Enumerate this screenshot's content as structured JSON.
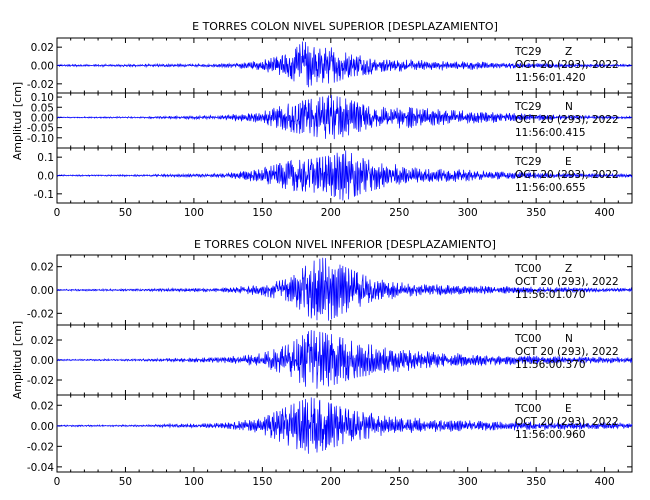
{
  "colors": {
    "trace": "#0000ff",
    "axis": "#000000",
    "background": "#ffffff"
  },
  "chart_data": [
    {
      "type": "line",
      "title": "E TORRES COLON NIVEL SUPERIOR [DESPLAZAMIENTO]",
      "ylabel": "Amplitud [cm]",
      "xlim": [
        0,
        420
      ],
      "x_ticks": [
        "0",
        "50",
        "100",
        "150",
        "200",
        "250",
        "300",
        "350",
        "400"
      ],
      "series": [
        {
          "station": "TC29",
          "component": "Z",
          "date": "OCT 20 (293), 2022",
          "time": "11:56:01.420",
          "ylim": [
            -0.03,
            0.03
          ],
          "y_ticks": [
            "0.02",
            "0.00",
            "-0.02"
          ],
          "peak": 0.028,
          "envelope": [
            [
              0,
              0.0012
            ],
            [
              60,
              0.0015
            ],
            [
              120,
              0.002
            ],
            [
              150,
              0.006
            ],
            [
              170,
              0.013
            ],
            [
              180,
              0.027
            ],
            [
              190,
              0.018
            ],
            [
              200,
              0.02
            ],
            [
              215,
              0.012
            ],
            [
              240,
              0.008
            ],
            [
              270,
              0.006
            ],
            [
              300,
              0.005
            ],
            [
              340,
              0.003
            ],
            [
              380,
              0.002
            ],
            [
              420,
              0.0015
            ]
          ]
        },
        {
          "station": "TC29",
          "component": "N",
          "date": "OCT 20 (293), 2022",
          "time": "11:56:00.415",
          "ylim": [
            -0.15,
            0.12
          ],
          "y_ticks": [
            "0.10",
            "0.05",
            "0.00",
            "-0.05",
            "-0.10"
          ],
          "peak": 0.12,
          "envelope": [
            [
              0,
              0.003
            ],
            [
              60,
              0.004
            ],
            [
              120,
              0.012
            ],
            [
              150,
              0.03
            ],
            [
              170,
              0.07
            ],
            [
              185,
              0.09
            ],
            [
              200,
              0.11
            ],
            [
              210,
              0.095
            ],
            [
              230,
              0.05
            ],
            [
              255,
              0.06
            ],
            [
              280,
              0.04
            ],
            [
              300,
              0.035
            ],
            [
              340,
              0.02
            ],
            [
              380,
              0.01
            ],
            [
              420,
              0.006
            ]
          ]
        },
        {
          "station": "TC29",
          "component": "E",
          "date": "OCT 20 (293), 2022",
          "time": "11:56:00.655",
          "ylim": [
            -0.15,
            0.15
          ],
          "y_ticks": [
            "0.1",
            "0.0",
            "-0.1"
          ],
          "peak": 0.15,
          "envelope": [
            [
              0,
              0.004
            ],
            [
              60,
              0.005
            ],
            [
              120,
              0.012
            ],
            [
              150,
              0.04
            ],
            [
              170,
              0.08
            ],
            [
              185,
              0.09
            ],
            [
              200,
              0.11
            ],
            [
              210,
              0.14
            ],
            [
              225,
              0.09
            ],
            [
              250,
              0.06
            ],
            [
              280,
              0.04
            ],
            [
              320,
              0.025
            ],
            [
              360,
              0.015
            ],
            [
              420,
              0.01
            ]
          ]
        }
      ]
    },
    {
      "type": "line",
      "title": "E TORRES COLON NIVEL INFERIOR [DESPLAZAMIENTO]",
      "ylabel": "Amplitud [cm]",
      "xlim": [
        0,
        420
      ],
      "x_ticks": [
        "0",
        "50",
        "100",
        "150",
        "200",
        "250",
        "300",
        "350",
        "400"
      ],
      "series": [
        {
          "station": "TC00",
          "component": "Z",
          "date": "OCT 20 (293), 2022",
          "time": "11:56:01.070",
          "ylim": [
            -0.03,
            0.03
          ],
          "y_ticks": [
            "0.02",
            "0.00",
            "-0.02"
          ],
          "peak": 0.03,
          "envelope": [
            [
              0,
              0.0008
            ],
            [
              60,
              0.001
            ],
            [
              120,
              0.002
            ],
            [
              150,
              0.005
            ],
            [
              170,
              0.01
            ],
            [
              185,
              0.024
            ],
            [
              195,
              0.028
            ],
            [
              210,
              0.02
            ],
            [
              230,
              0.01
            ],
            [
              260,
              0.006
            ],
            [
              300,
              0.004
            ],
            [
              340,
              0.003
            ],
            [
              420,
              0.0015
            ]
          ]
        },
        {
          "station": "TC00",
          "component": "N",
          "date": "OCT 20 (293), 2022",
          "time": "11:56:00.370",
          "ylim": [
            -0.035,
            0.035
          ],
          "y_ticks": [
            "0.02",
            "0.00",
            "-0.02"
          ],
          "peak": 0.032,
          "envelope": [
            [
              0,
              0.0008
            ],
            [
              60,
              0.001
            ],
            [
              120,
              0.003
            ],
            [
              150,
              0.007
            ],
            [
              170,
              0.016
            ],
            [
              185,
              0.03
            ],
            [
              200,
              0.026
            ],
            [
              220,
              0.017
            ],
            [
              250,
              0.012
            ],
            [
              280,
              0.008
            ],
            [
              320,
              0.006
            ],
            [
              360,
              0.004
            ],
            [
              420,
              0.003
            ]
          ]
        },
        {
          "station": "TC00",
          "component": "E",
          "date": "OCT 20 (293), 2022",
          "time": "11:56:00.960",
          "ylim": [
            -0.045,
            0.03
          ],
          "y_ticks": [
            "0.02",
            "0.00",
            "-0.02",
            "-0.04"
          ],
          "peak": 0.03,
          "envelope": [
            [
              0,
              0.0008
            ],
            [
              60,
              0.001
            ],
            [
              120,
              0.003
            ],
            [
              150,
              0.008
            ],
            [
              170,
              0.02
            ],
            [
              185,
              0.028
            ],
            [
              200,
              0.022
            ],
            [
              215,
              0.015
            ],
            [
              240,
              0.01
            ],
            [
              270,
              0.007
            ],
            [
              310,
              0.005
            ],
            [
              360,
              0.004
            ],
            [
              420,
              0.003
            ]
          ]
        }
      ]
    }
  ]
}
